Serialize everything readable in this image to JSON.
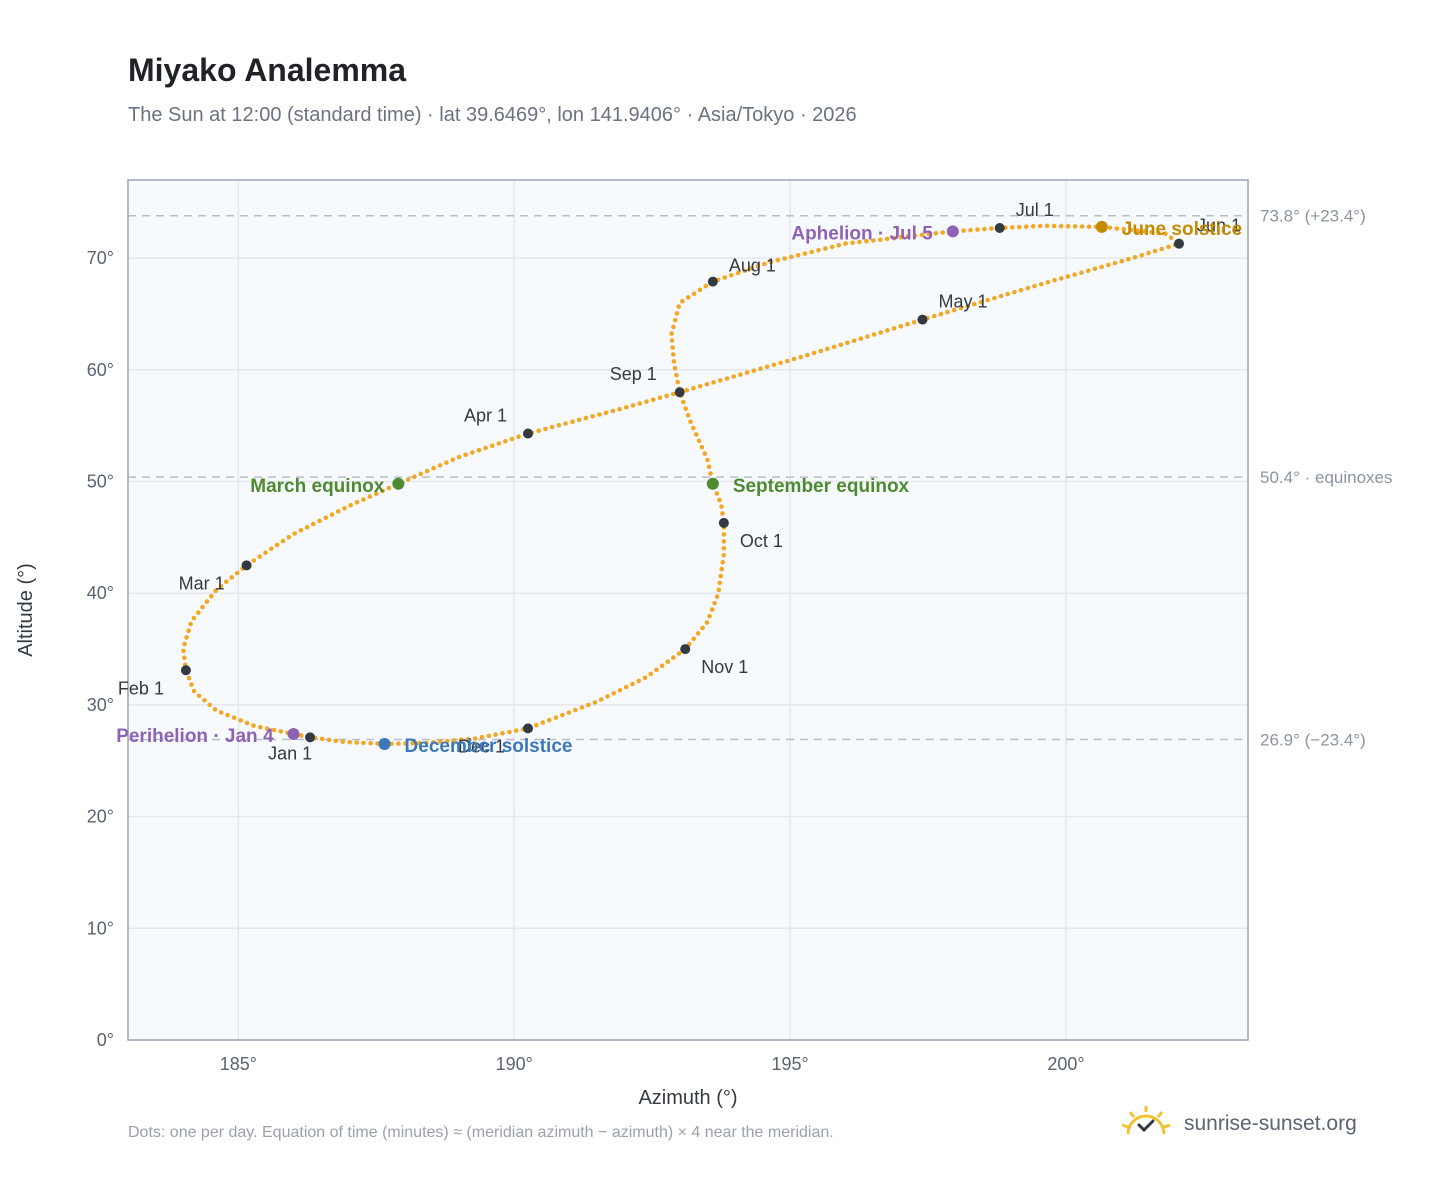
{
  "title": "Miyako Analemma",
  "subtitle": "The Sun at 12:00 (standard time) · lat 39.6469°, lon 141.9406° · Asia/Tokyo · 2026",
  "footnote": "Dots: one per day. Equation of time (minutes) ≈ (meridian azimuth − azimuth) × 4 near the meridian.",
  "brand": {
    "name": "sunrise-sunset.org",
    "icon": "sun-check-icon"
  },
  "colors": {
    "curve": "#f5a623",
    "month_marker": "#333a42",
    "equinox": "#4e8a30",
    "june_solstice": "#c48a00",
    "december_solstice": "#3a78b9",
    "aphelion_perihelion": "#8e62b4",
    "reference_line": "#b7bec8"
  },
  "chart_data": {
    "type": "scatter",
    "xlabel": "Azimuth (°)",
    "ylabel": "Altitude (°)",
    "xlim": [
      183,
      203.3
    ],
    "ylim": [
      0,
      77
    ],
    "xticks": [
      185,
      190,
      195,
      200
    ],
    "xtick_labels": [
      "185°",
      "190°",
      "195°",
      "200°"
    ],
    "yticks": [
      0,
      10,
      20,
      30,
      40,
      50,
      60,
      70
    ],
    "ytick_labels": [
      "0°",
      "10°",
      "20°",
      "30°",
      "40°",
      "50°",
      "60°",
      "70°"
    ],
    "grid": true,
    "reference_lines": [
      {
        "y": 73.8,
        "label": "73.8° (+23.4°)"
      },
      {
        "y": 50.4,
        "label": "50.4° · equinoxes"
      },
      {
        "y": 26.9,
        "label": "26.9° (−23.4°)"
      }
    ],
    "month_markers": [
      {
        "label": "Jan 1",
        "x": 186.3,
        "y": 27.1
      },
      {
        "label": "Feb 1",
        "x": 184.05,
        "y": 33.1
      },
      {
        "label": "Mar 1",
        "x": 185.15,
        "y": 42.5
      },
      {
        "label": "Apr 1",
        "x": 190.25,
        "y": 54.3
      },
      {
        "label": "May 1",
        "x": 197.4,
        "y": 64.5
      },
      {
        "label": "Jun 1",
        "x": 202.05,
        "y": 71.3
      },
      {
        "label": "Jul 1",
        "x": 198.8,
        "y": 72.7
      },
      {
        "label": "Aug 1",
        "x": 193.6,
        "y": 67.9
      },
      {
        "label": "Sep 1",
        "x": 193.0,
        "y": 58.0
      },
      {
        "label": "Oct 1",
        "x": 193.8,
        "y": 46.3
      },
      {
        "label": "Nov 1",
        "x": 193.1,
        "y": 35.0
      },
      {
        "label": "Dec 1",
        "x": 190.25,
        "y": 27.9
      }
    ],
    "special_points": [
      {
        "label": "March equinox",
        "x": 187.9,
        "y": 49.8,
        "kind": "equinox"
      },
      {
        "label": "September equinox",
        "x": 193.6,
        "y": 49.8,
        "kind": "equinox"
      },
      {
        "label": "June solstice",
        "x": 200.65,
        "y": 72.8,
        "kind": "june_solstice"
      },
      {
        "label": "December solstice",
        "x": 187.65,
        "y": 26.5,
        "kind": "december_solstice"
      },
      {
        "label": "Aphelion · Jul 5",
        "x": 197.95,
        "y": 72.4,
        "kind": "apsis"
      },
      {
        "label": "Perihelion · Jan 4",
        "x": 186.0,
        "y": 27.4,
        "kind": "apsis"
      }
    ],
    "curve_path": [
      [
        187.65,
        26.5
      ],
      [
        186.9,
        26.7
      ],
      [
        186.3,
        27.1
      ],
      [
        186.0,
        27.4
      ],
      [
        185.3,
        28.1
      ],
      [
        184.6,
        29.5
      ],
      [
        184.2,
        31.2
      ],
      [
        184.05,
        33.1
      ],
      [
        184.0,
        35.0
      ],
      [
        184.15,
        37.5
      ],
      [
        184.6,
        40.3
      ],
      [
        185.15,
        42.5
      ],
      [
        186.0,
        45.3
      ],
      [
        187.0,
        47.8
      ],
      [
        187.9,
        49.8
      ],
      [
        189.0,
        52.2
      ],
      [
        190.25,
        54.3
      ],
      [
        192.0,
        56.6
      ],
      [
        193.0,
        58.0
      ],
      [
        195.3,
        61.3
      ],
      [
        197.4,
        64.5
      ],
      [
        199.5,
        67.6
      ],
      [
        201.2,
        70.0
      ],
      [
        202.05,
        71.3
      ],
      [
        201.8,
        72.2
      ],
      [
        200.65,
        72.8
      ],
      [
        199.6,
        72.9
      ],
      [
        198.8,
        72.7
      ],
      [
        197.95,
        72.4
      ],
      [
        196.0,
        71.3
      ],
      [
        194.6,
        69.6
      ],
      [
        193.6,
        67.9
      ],
      [
        193.0,
        66.0
      ],
      [
        192.85,
        63.2
      ],
      [
        192.9,
        60.5
      ],
      [
        193.0,
        58.0
      ],
      [
        193.2,
        55.3
      ],
      [
        193.5,
        52.0
      ],
      [
        193.6,
        49.8
      ],
      [
        193.75,
        48.0
      ],
      [
        193.8,
        46.3
      ],
      [
        193.8,
        43.5
      ],
      [
        193.7,
        40.0
      ],
      [
        193.5,
        37.4
      ],
      [
        193.1,
        35.0
      ],
      [
        192.4,
        32.5
      ],
      [
        191.5,
        30.3
      ],
      [
        190.25,
        27.9
      ],
      [
        189.3,
        27.0
      ],
      [
        188.4,
        26.6
      ],
      [
        187.65,
        26.5
      ]
    ]
  }
}
